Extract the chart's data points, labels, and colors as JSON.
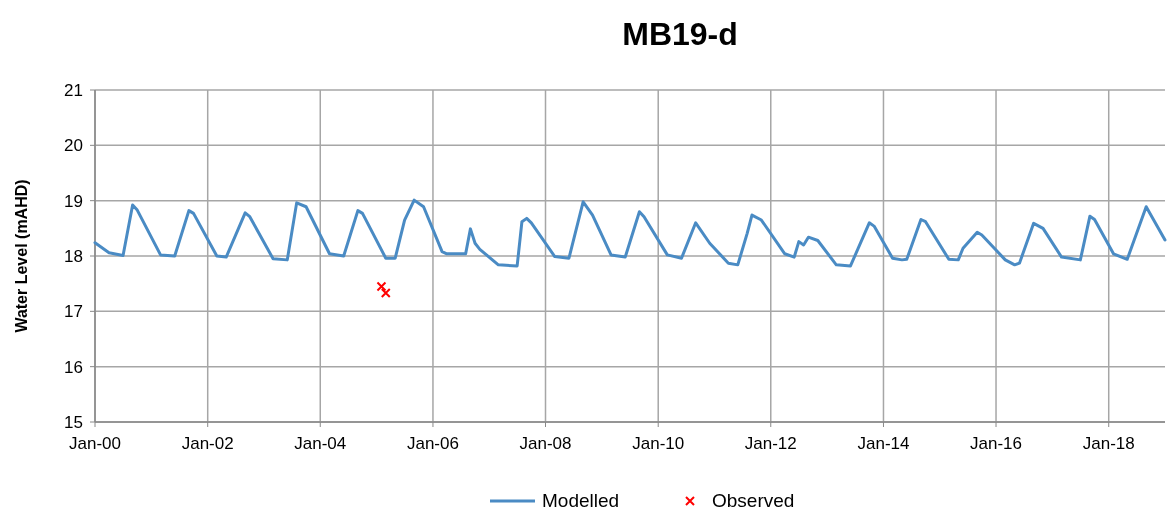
{
  "chart_data": {
    "type": "line",
    "title": "MB19-d",
    "ylabel": "Water Level (mAHD)",
    "xlim": [
      "2000-01",
      "2019-01"
    ],
    "xticks": [
      {
        "value": "2000-01",
        "label": "Jan-00"
      },
      {
        "value": "2002-01",
        "label": "Jan-02"
      },
      {
        "value": "2004-01",
        "label": "Jan-04"
      },
      {
        "value": "2006-01",
        "label": "Jan-06"
      },
      {
        "value": "2008-01",
        "label": "Jan-08"
      },
      {
        "value": "2010-01",
        "label": "Jan-10"
      },
      {
        "value": "2012-01",
        "label": "Jan-12"
      },
      {
        "value": "2014-01",
        "label": "Jan-14"
      },
      {
        "value": "2016-01",
        "label": "Jan-16"
      },
      {
        "value": "2018-01",
        "label": "Jan-18"
      }
    ],
    "ylim": [
      15,
      21
    ],
    "yticks": [
      15,
      16,
      17,
      18,
      19,
      20,
      21
    ],
    "grid": true,
    "legend": "bottom",
    "series": [
      {
        "name": "Modelled",
        "color": "#4a8bc4",
        "marker": "none",
        "line_style": "solid",
        "x": [
          "2000-01",
          "2000-04",
          "2000-07",
          "2000-09",
          "2000-10",
          "2001-03",
          "2001-06",
          "2001-09",
          "2001-10",
          "2002-03",
          "2002-05",
          "2002-09",
          "2002-10",
          "2003-03",
          "2003-06",
          "2003-08",
          "2003-10",
          "2004-03",
          "2004-06",
          "2004-09",
          "2004-10",
          "2005-03",
          "2005-05",
          "2005-07",
          "2005-09",
          "2005-11",
          "2006-03",
          "2006-04",
          "2006-08",
          "2006-09",
          "2006-10",
          "2006-11",
          "2007-03",
          "2007-07",
          "2007-08",
          "2007-09",
          "2007-10",
          "2008-03",
          "2008-06",
          "2008-09",
          "2008-11",
          "2009-03",
          "2009-06",
          "2009-09",
          "2009-10",
          "2010-03",
          "2010-06",
          "2010-09",
          "2010-12",
          "2011-04",
          "2011-06",
          "2011-08",
          "2011-09",
          "2011-11",
          "2012-04",
          "2012-06",
          "2012-07",
          "2012-08",
          "2012-09",
          "2012-11",
          "2013-03",
          "2013-06",
          "2013-10",
          "2013-11",
          "2014-03",
          "2014-05",
          "2014-06",
          "2014-09",
          "2014-10",
          "2015-03",
          "2015-05",
          "2015-06",
          "2015-09",
          "2015-10",
          "2016-03",
          "2016-05",
          "2016-06",
          "2016-09",
          "2016-11",
          "2017-03",
          "2017-07",
          "2017-09",
          "2017-10",
          "2018-02",
          "2018-05",
          "2018-09",
          "2019-01"
        ],
        "values": [
          18.24,
          18.06,
          18.01,
          18.92,
          18.83,
          18.02,
          18.0,
          18.82,
          18.77,
          18.0,
          17.98,
          18.78,
          18.71,
          17.95,
          17.93,
          18.96,
          18.89,
          18.04,
          18.0,
          18.82,
          18.77,
          17.96,
          17.96,
          18.65,
          19.01,
          18.89,
          18.08,
          18.04,
          18.04,
          18.49,
          18.23,
          18.12,
          17.84,
          17.82,
          18.62,
          18.68,
          18.6,
          17.99,
          17.96,
          18.98,
          18.74,
          18.02,
          17.98,
          18.8,
          18.71,
          18.02,
          17.96,
          18.6,
          18.23,
          17.87,
          17.84,
          18.41,
          18.74,
          18.65,
          18.04,
          17.98,
          18.26,
          18.2,
          18.34,
          18.28,
          17.84,
          17.82,
          18.6,
          18.54,
          17.96,
          17.93,
          17.94,
          18.66,
          18.62,
          17.94,
          17.93,
          18.14,
          18.43,
          18.38,
          17.93,
          17.84,
          17.87,
          18.59,
          18.5,
          17.98,
          17.93,
          18.72,
          18.66,
          18.04,
          17.94,
          18.89,
          18.29
        ]
      },
      {
        "name": "Observed",
        "type": "scatter",
        "color": "#ff0000",
        "marker": "cross",
        "x": [
          "2005-02",
          "2005-03"
        ],
        "values": [
          17.45,
          17.33
        ]
      }
    ]
  }
}
